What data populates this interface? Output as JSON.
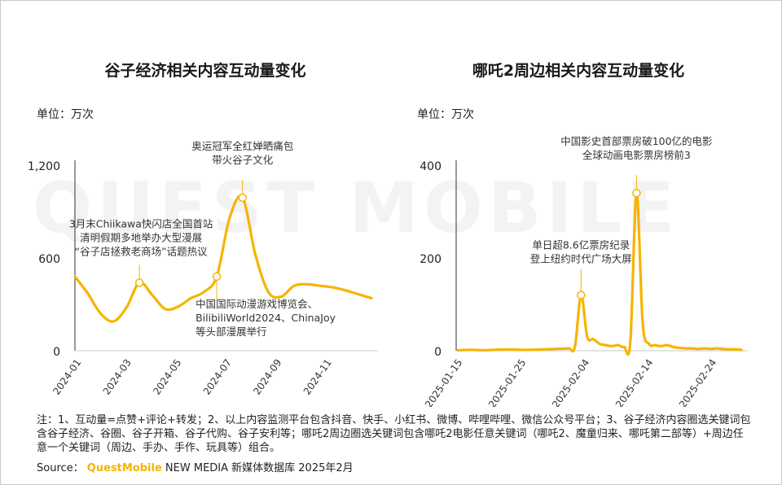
{
  "watermark": "QUEST MOBILE",
  "charts": {
    "left": {
      "title": "谷子经济相关内容互动量变化",
      "unit": "单位：万次"
    },
    "right": {
      "title": "哪吒2周边相关内容互动量变化",
      "unit": "单位：万次"
    }
  },
  "footer": {
    "note": "注：1、互动量=点赞+评论+转发；2、以上内容监测平台包含抖音、快手、小红书、微博、哔哩哔哩、微信公众号平台；3、谷子经济内容圈选关键词包含谷子经济、谷圈、谷子开箱、谷子代购、谷子安利等；哪吒2周边圈选关键词包含哪吒2电影任意关键词（哪吒2、魔童归来、哪吒第二部等）+周边任意一个关键词（周边、手办、手作、玩具等）组合。",
    "source_label": "Source：",
    "source_brand": "QuestMobile",
    "source_rest": " NEW MEDIA 新媒体数据库 2025年2月"
  },
  "colors": {
    "line": "#f6b400",
    "axis": "#333333",
    "text": "#222222"
  },
  "chart_data": [
    {
      "type": "line",
      "title": "谷子经济相关内容互动量变化",
      "ylabel": "单位：万次",
      "ylim": [
        0,
        1200
      ],
      "yticks": [
        0,
        600,
        1200
      ],
      "ytick_labels": [
        "0",
        "600",
        "1,200"
      ],
      "xtick_labels": [
        "2024-01",
        "2024-03",
        "2024-05",
        "2024-07",
        "2024-09",
        "2024-11"
      ],
      "x": [
        0,
        0.5,
        1,
        1.5,
        2,
        2.5,
        3,
        3.5,
        4,
        4.5,
        5,
        5.5,
        6,
        6.5,
        7,
        7.5,
        8,
        8.5,
        9,
        9.5,
        10,
        10.5,
        11,
        11.5
      ],
      "values": [
        480,
        370,
        240,
        190,
        280,
        440,
        360,
        270,
        285,
        340,
        380,
        480,
        860,
        990,
        620,
        380,
        350,
        420,
        430,
        420,
        410,
        390,
        365,
        340
      ],
      "series_color": "#f6b400",
      "annotations": [
        {
          "x": 2.5,
          "y": 440,
          "text": [
            "3月末Chiikawa快闪店全国首站",
            "清明假期多地举办大型漫展",
            "“谷子店拯救老商场”话题热议"
          ]
        },
        {
          "x": 5.5,
          "y": 480,
          "text": [
            "中国国际动漫游戏博览会、",
            "BilibiliWorld2024、ChinaJoy",
            "等头部漫展举行"
          ]
        },
        {
          "x": 6.5,
          "y": 990,
          "text": [
            "奥运冠军全红婵晒痛包",
            "带火谷子文化"
          ]
        }
      ]
    },
    {
      "type": "line",
      "title": "哪吒2周边相关内容互动量变化",
      "ylabel": "单位：万次",
      "ylim": [
        0,
        400
      ],
      "yticks": [
        0,
        200,
        400
      ],
      "ytick_labels": [
        "0",
        "200",
        "400"
      ],
      "xtick_labels": [
        "2025-01-15",
        "2025-01-25",
        "2025-02-04",
        "2025-02-14",
        "2025-02-24"
      ],
      "x": [
        0,
        2,
        4,
        6,
        8,
        10,
        12,
        14,
        16,
        18,
        19,
        20,
        21,
        22,
        23,
        24,
        25,
        26,
        27,
        28,
        29,
        30,
        31,
        32,
        33,
        34,
        35,
        36,
        37,
        38,
        39,
        40,
        41,
        42,
        43,
        44,
        45,
        46
      ],
      "values": [
        1,
        2,
        1,
        2,
        3,
        2,
        2,
        3,
        4,
        5,
        8,
        120,
        30,
        25,
        15,
        12,
        10,
        12,
        8,
        20,
        340,
        60,
        15,
        12,
        10,
        12,
        8,
        6,
        5,
        5,
        4,
        5,
        4,
        5,
        4,
        3,
        3,
        2
      ],
      "series_color": "#f6b400",
      "annotations": [
        {
          "x": 20,
          "y": 120,
          "text": [
            "单日超8.6亿票房纪录",
            "登上纽约时代广场大屏"
          ]
        },
        {
          "x": 29,
          "y": 340,
          "text": [
            "中国影史首部票房破100亿的电影",
            "全球动画电影票房榜前3"
          ]
        }
      ]
    }
  ]
}
